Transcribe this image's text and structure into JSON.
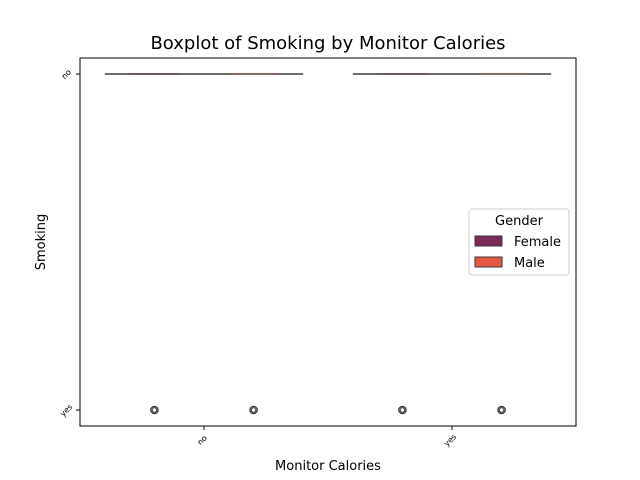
{
  "chart_data": {
    "type": "boxplot",
    "title": "Boxplot of Smoking by Monitor Calories",
    "xlabel": "Monitor Calories",
    "ylabel": "Smoking",
    "categories": [
      "no",
      "yes"
    ],
    "y_categories": [
      "no",
      "yes"
    ],
    "legend": {
      "title": "Gender",
      "placement": "center-right"
    },
    "series": [
      {
        "name": "Female",
        "color": "#7b2a57",
        "boxes": [
          {
            "category": "no",
            "median": "no",
            "q1": "no",
            "q3": "no",
            "whisker_low": "no",
            "whisker_high": "no",
            "outliers": [
              "yes"
            ]
          },
          {
            "category": "yes",
            "median": "no",
            "q1": "no",
            "q3": "no",
            "whisker_low": "no",
            "whisker_high": "no",
            "outliers": [
              "yes"
            ]
          }
        ]
      },
      {
        "name": "Male",
        "color": "#e65a45",
        "boxes": [
          {
            "category": "no",
            "median": "no",
            "q1": "no",
            "q3": "no",
            "whisker_low": "no",
            "whisker_high": "no",
            "outliers": [
              "yes"
            ]
          },
          {
            "category": "yes",
            "median": "no",
            "q1": "no",
            "q3": "no",
            "whisker_low": "no",
            "whisker_high": "no",
            "outliers": [
              "yes"
            ]
          }
        ]
      }
    ],
    "grid": false
  }
}
